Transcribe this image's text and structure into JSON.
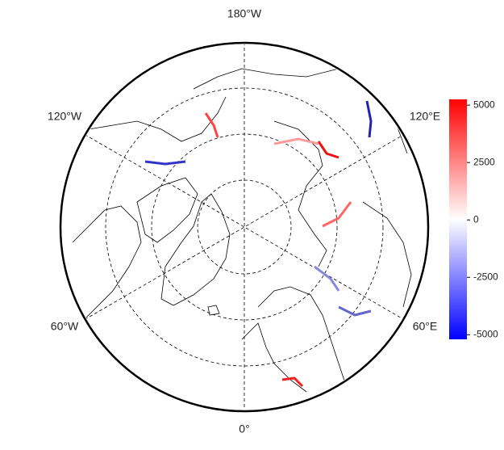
{
  "map": {
    "lon_labels": [
      "180°W",
      "120°W",
      "120°E",
      "60°W",
      "60°E",
      "0°"
    ],
    "colorbar": {
      "lim": [
        -5200,
        5250
      ],
      "ticks": [
        5000,
        2500,
        0,
        -2500,
        -5000
      ],
      "colors": [
        "#0000ff",
        "#ffffff",
        "#ff0000"
      ]
    }
  }
}
